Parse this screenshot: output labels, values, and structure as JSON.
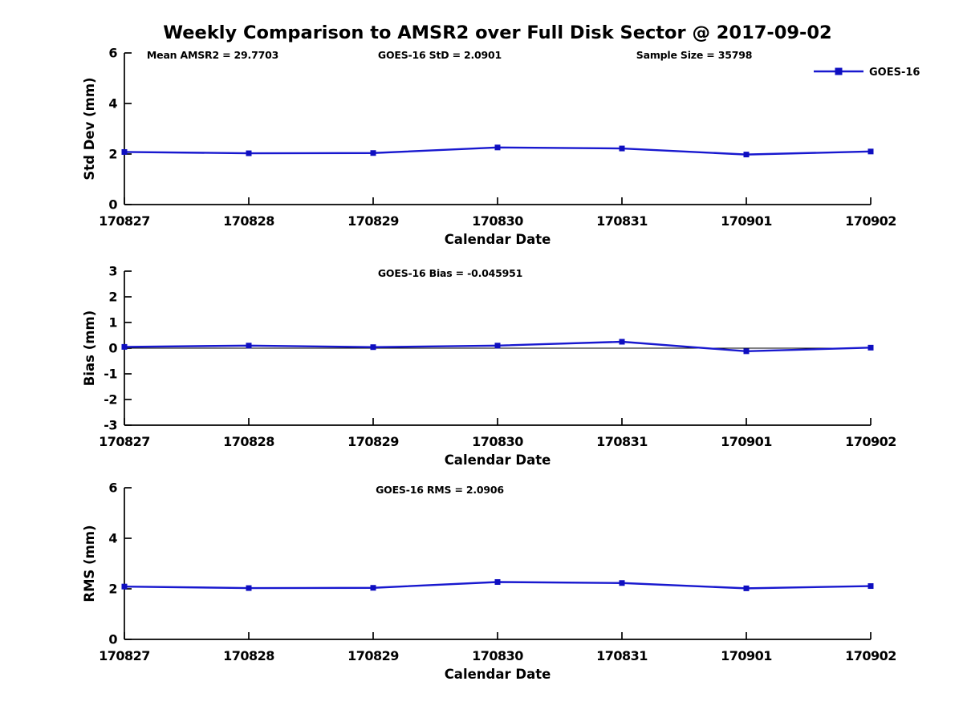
{
  "title": "Weekly Comparison to AMSR2 over Full Disk Sector @ 2017-09-02",
  "colors": {
    "line": "#1818CF",
    "marker": "#0E0EC0",
    "axis": "#000000",
    "zero_line": "#000000",
    "text": "#000000"
  },
  "legend": {
    "label": "GOES-16"
  },
  "chart_data": [
    {
      "type": "line",
      "name": "std-dev",
      "ylabel": "Std Dev (mm)",
      "xlabel": "Calendar Date",
      "ylim": [
        0,
        6
      ],
      "yticks": [
        0,
        2,
        4,
        6
      ],
      "grid": false,
      "legend_position": "top-right",
      "annotations": [
        "Mean AMSR2 = 29.7703",
        "GOES-16 StD = 2.0901",
        "Sample Size = 35798"
      ],
      "categories": [
        "170827",
        "170828",
        "170829",
        "170830",
        "170831",
        "170901",
        "170902"
      ],
      "series": [
        {
          "name": "GOES-16",
          "values": [
            2.08,
            2.03,
            2.04,
            2.26,
            2.22,
            1.98,
            2.1
          ]
        }
      ],
      "show_legend": true,
      "zero_line": false
    },
    {
      "type": "line",
      "name": "bias",
      "ylabel": "Bias (mm)",
      "xlabel": "Calendar Date",
      "ylim": [
        -3,
        3
      ],
      "yticks": [
        -3,
        -2,
        -1,
        0,
        1,
        2,
        3
      ],
      "grid": false,
      "annotations": [
        "GOES-16 Bias  = -0.045951"
      ],
      "categories": [
        "170827",
        "170828",
        "170829",
        "170830",
        "170831",
        "170901",
        "170902"
      ],
      "series": [
        {
          "name": "GOES-16",
          "values": [
            0.05,
            0.1,
            0.04,
            0.1,
            0.25,
            -0.12,
            0.02
          ]
        }
      ],
      "show_legend": false,
      "zero_line": true
    },
    {
      "type": "line",
      "name": "rms",
      "ylabel": "RMS (mm)",
      "xlabel": "Calendar Date",
      "ylim": [
        0,
        6
      ],
      "yticks": [
        0,
        2,
        4,
        6
      ],
      "grid": false,
      "annotations": [
        "GOES-16 RMS = 2.0906"
      ],
      "categories": [
        "170827",
        "170828",
        "170829",
        "170830",
        "170831",
        "170901",
        "170902"
      ],
      "series": [
        {
          "name": "GOES-16",
          "values": [
            2.09,
            2.03,
            2.04,
            2.27,
            2.23,
            2.02,
            2.11
          ]
        }
      ],
      "show_legend": false,
      "zero_line": false
    }
  ]
}
